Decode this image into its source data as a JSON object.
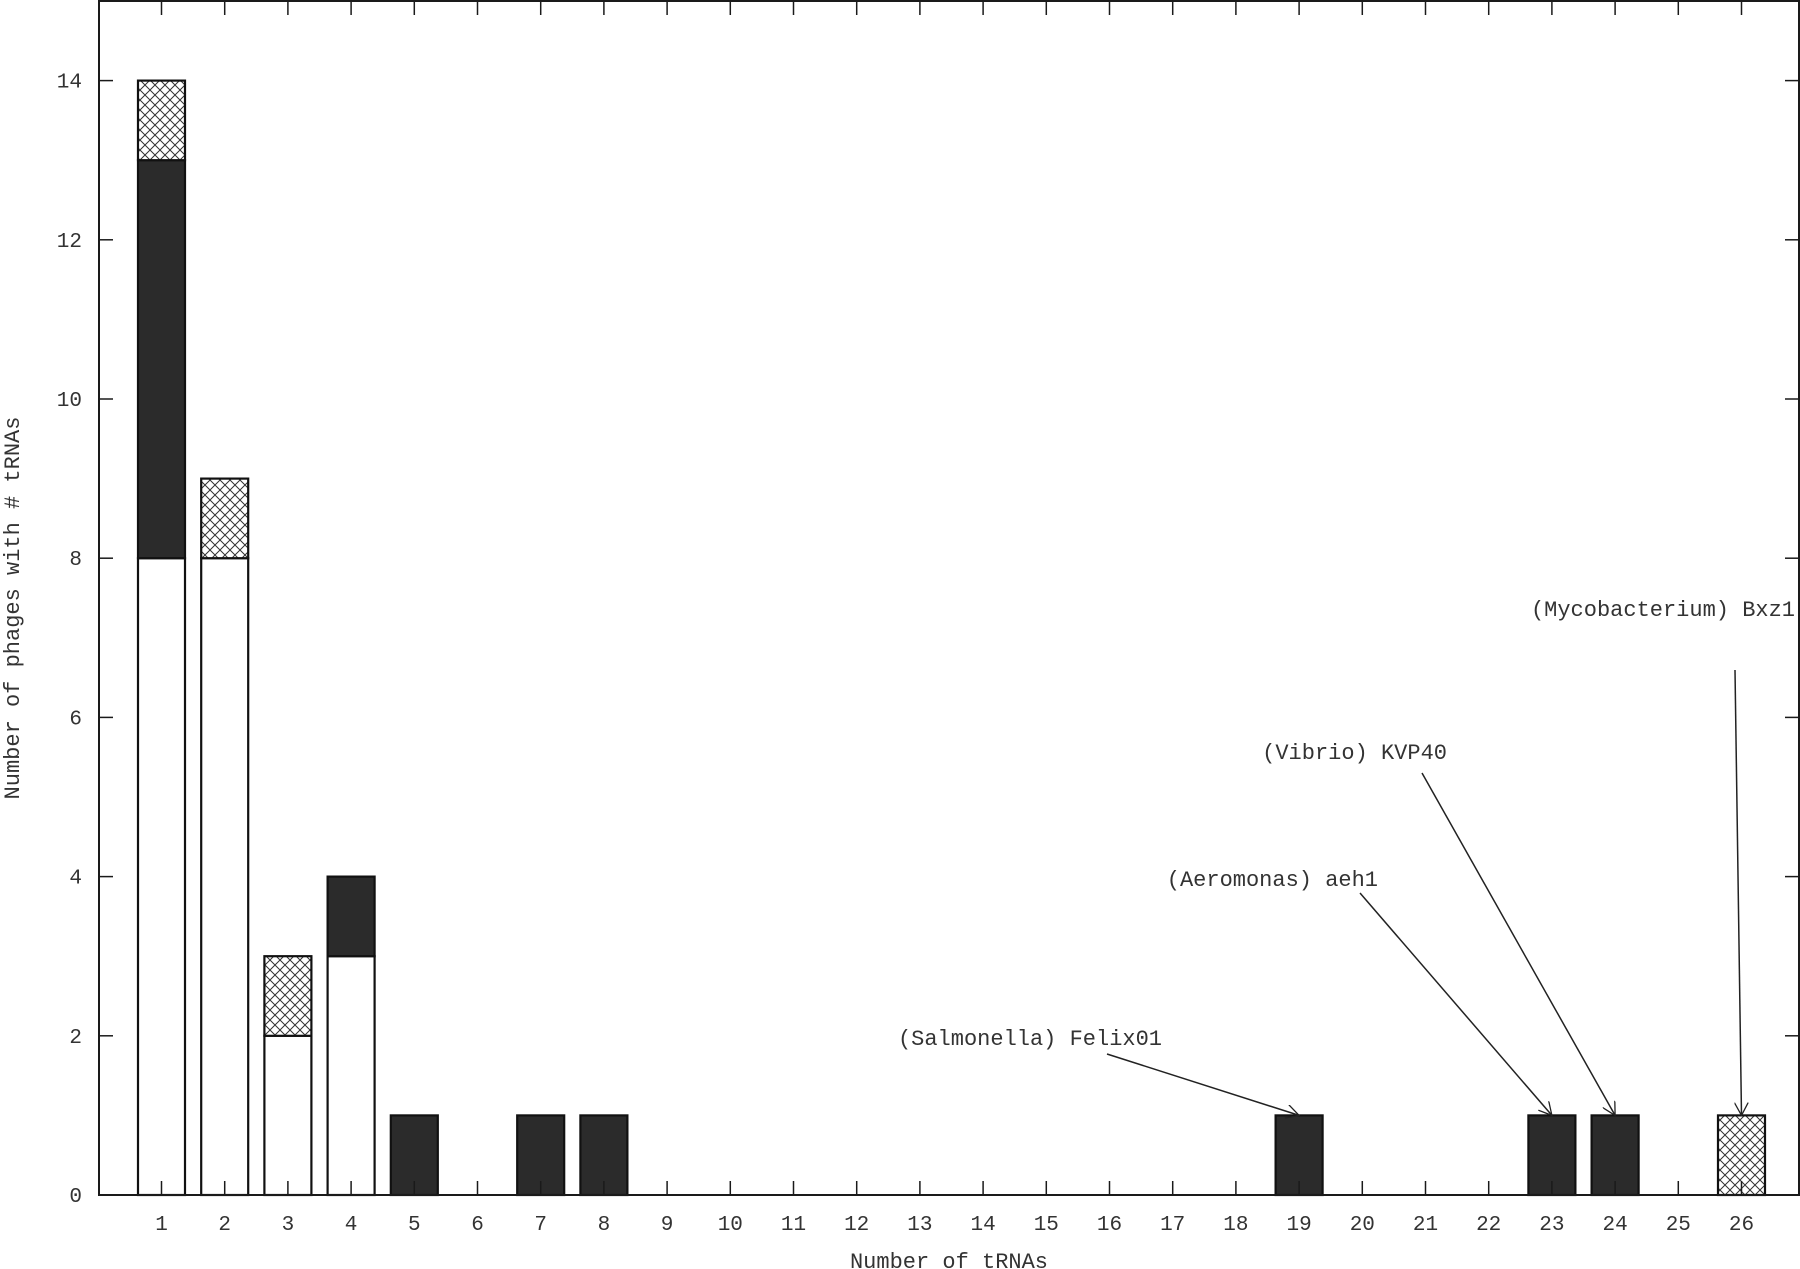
{
  "chart_data": {
    "type": "bar",
    "stacked": true,
    "title": "",
    "xlabel": "Number of tRNAs",
    "ylabel": "Number of phages with # tRNAs",
    "categories": [
      "1",
      "2",
      "3",
      "4",
      "5",
      "6",
      "7",
      "8",
      "9",
      "10",
      "11",
      "12",
      "13",
      "14",
      "15",
      "16",
      "17",
      "18",
      "19",
      "20",
      "21",
      "22",
      "23",
      "24",
      "25",
      "26"
    ],
    "ylim": [
      0,
      15
    ],
    "yticks": [
      0,
      2,
      4,
      6,
      8,
      10,
      12,
      14
    ],
    "grid": false,
    "legend": "none",
    "series": [
      {
        "fill": "white",
        "color": "#ffffff",
        "values": [
          8,
          8,
          2,
          3,
          0,
          0,
          0,
          0,
          0,
          0,
          0,
          0,
          0,
          0,
          0,
          0,
          0,
          0,
          0,
          0,
          0,
          0,
          0,
          0,
          0,
          0
        ]
      },
      {
        "fill": "black",
        "color": "#2b2b2b",
        "values": [
          5,
          0,
          0,
          1,
          1,
          0,
          1,
          1,
          0,
          0,
          0,
          0,
          0,
          0,
          0,
          0,
          0,
          0,
          1,
          0,
          0,
          0,
          1,
          1,
          0,
          0
        ]
      },
      {
        "fill": "crosshatch",
        "color": "#ffffff",
        "values": [
          1,
          1,
          1,
          0,
          0,
          0,
          0,
          0,
          0,
          0,
          0,
          0,
          0,
          0,
          0,
          0,
          0,
          0,
          0,
          0,
          0,
          0,
          0,
          0,
          0,
          1
        ]
      }
    ],
    "annotations": [
      {
        "text": "(Salmonella) Felix01",
        "x": "19",
        "y": 1
      },
      {
        "text": "(Aeromonas) aeh1",
        "x": "23",
        "y": 1
      },
      {
        "text": "(Vibrio) KVP40",
        "x": "24",
        "y": 1
      },
      {
        "text": "(Mycobacterium) Bxz1",
        "x": "26",
        "y": 1
      }
    ]
  }
}
